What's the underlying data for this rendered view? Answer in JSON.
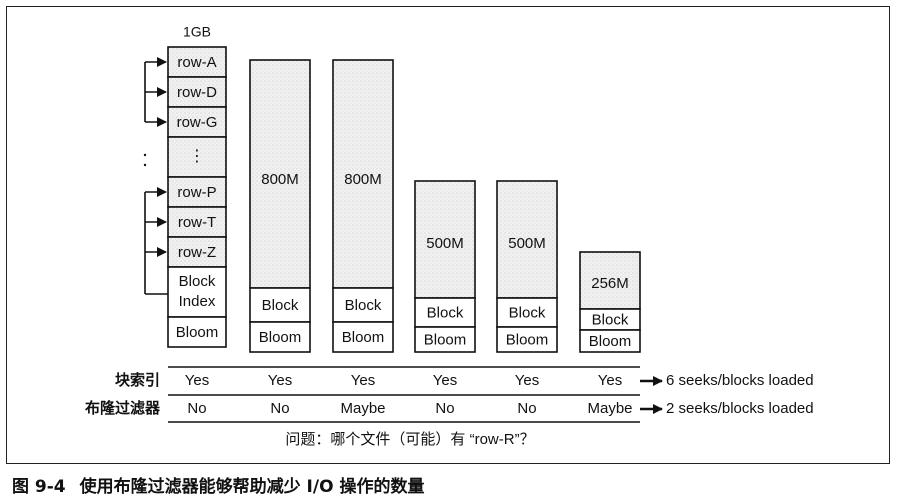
{
  "figure": {
    "caption_number": "图 9-4",
    "caption_text": "使用布隆过滤器能够帮助减少 I/O 操作的数量",
    "question": "问题：哪个文件（可能）有 “row-R”？"
  },
  "index_file": {
    "size_label": "1GB",
    "rows_top": [
      "row-A",
      "row-D",
      "row-G"
    ],
    "ellipsis": "⋮",
    "rows_bottom": [
      "row-P",
      "row-T",
      "row-Z"
    ],
    "block_index_label": "Block\nIndex",
    "bloom_label": "Bloom"
  },
  "files": [
    {
      "size": "800M",
      "block_label": "Block",
      "bloom_label": "Bloom"
    },
    {
      "size": "800M",
      "block_label": "Block",
      "bloom_label": "Bloom"
    },
    {
      "size": "500M",
      "block_label": "Block",
      "bloom_label": "Bloom"
    },
    {
      "size": "500M",
      "block_label": "Block",
      "bloom_label": "Bloom"
    },
    {
      "size": "256M",
      "block_label": "Block",
      "bloom_label": "Bloom"
    }
  ],
  "table": {
    "rows": [
      {
        "label": "块索引",
        "values": [
          "Yes",
          "Yes",
          "Yes",
          "Yes",
          "Yes",
          "Yes"
        ],
        "result": "6 seeks/blocks loaded"
      },
      {
        "label": "布隆过滤器",
        "values": [
          "No",
          "No",
          "Maybe",
          "No",
          "No",
          "Maybe"
        ],
        "result": "2 seeks/blocks loaded"
      }
    ]
  }
}
